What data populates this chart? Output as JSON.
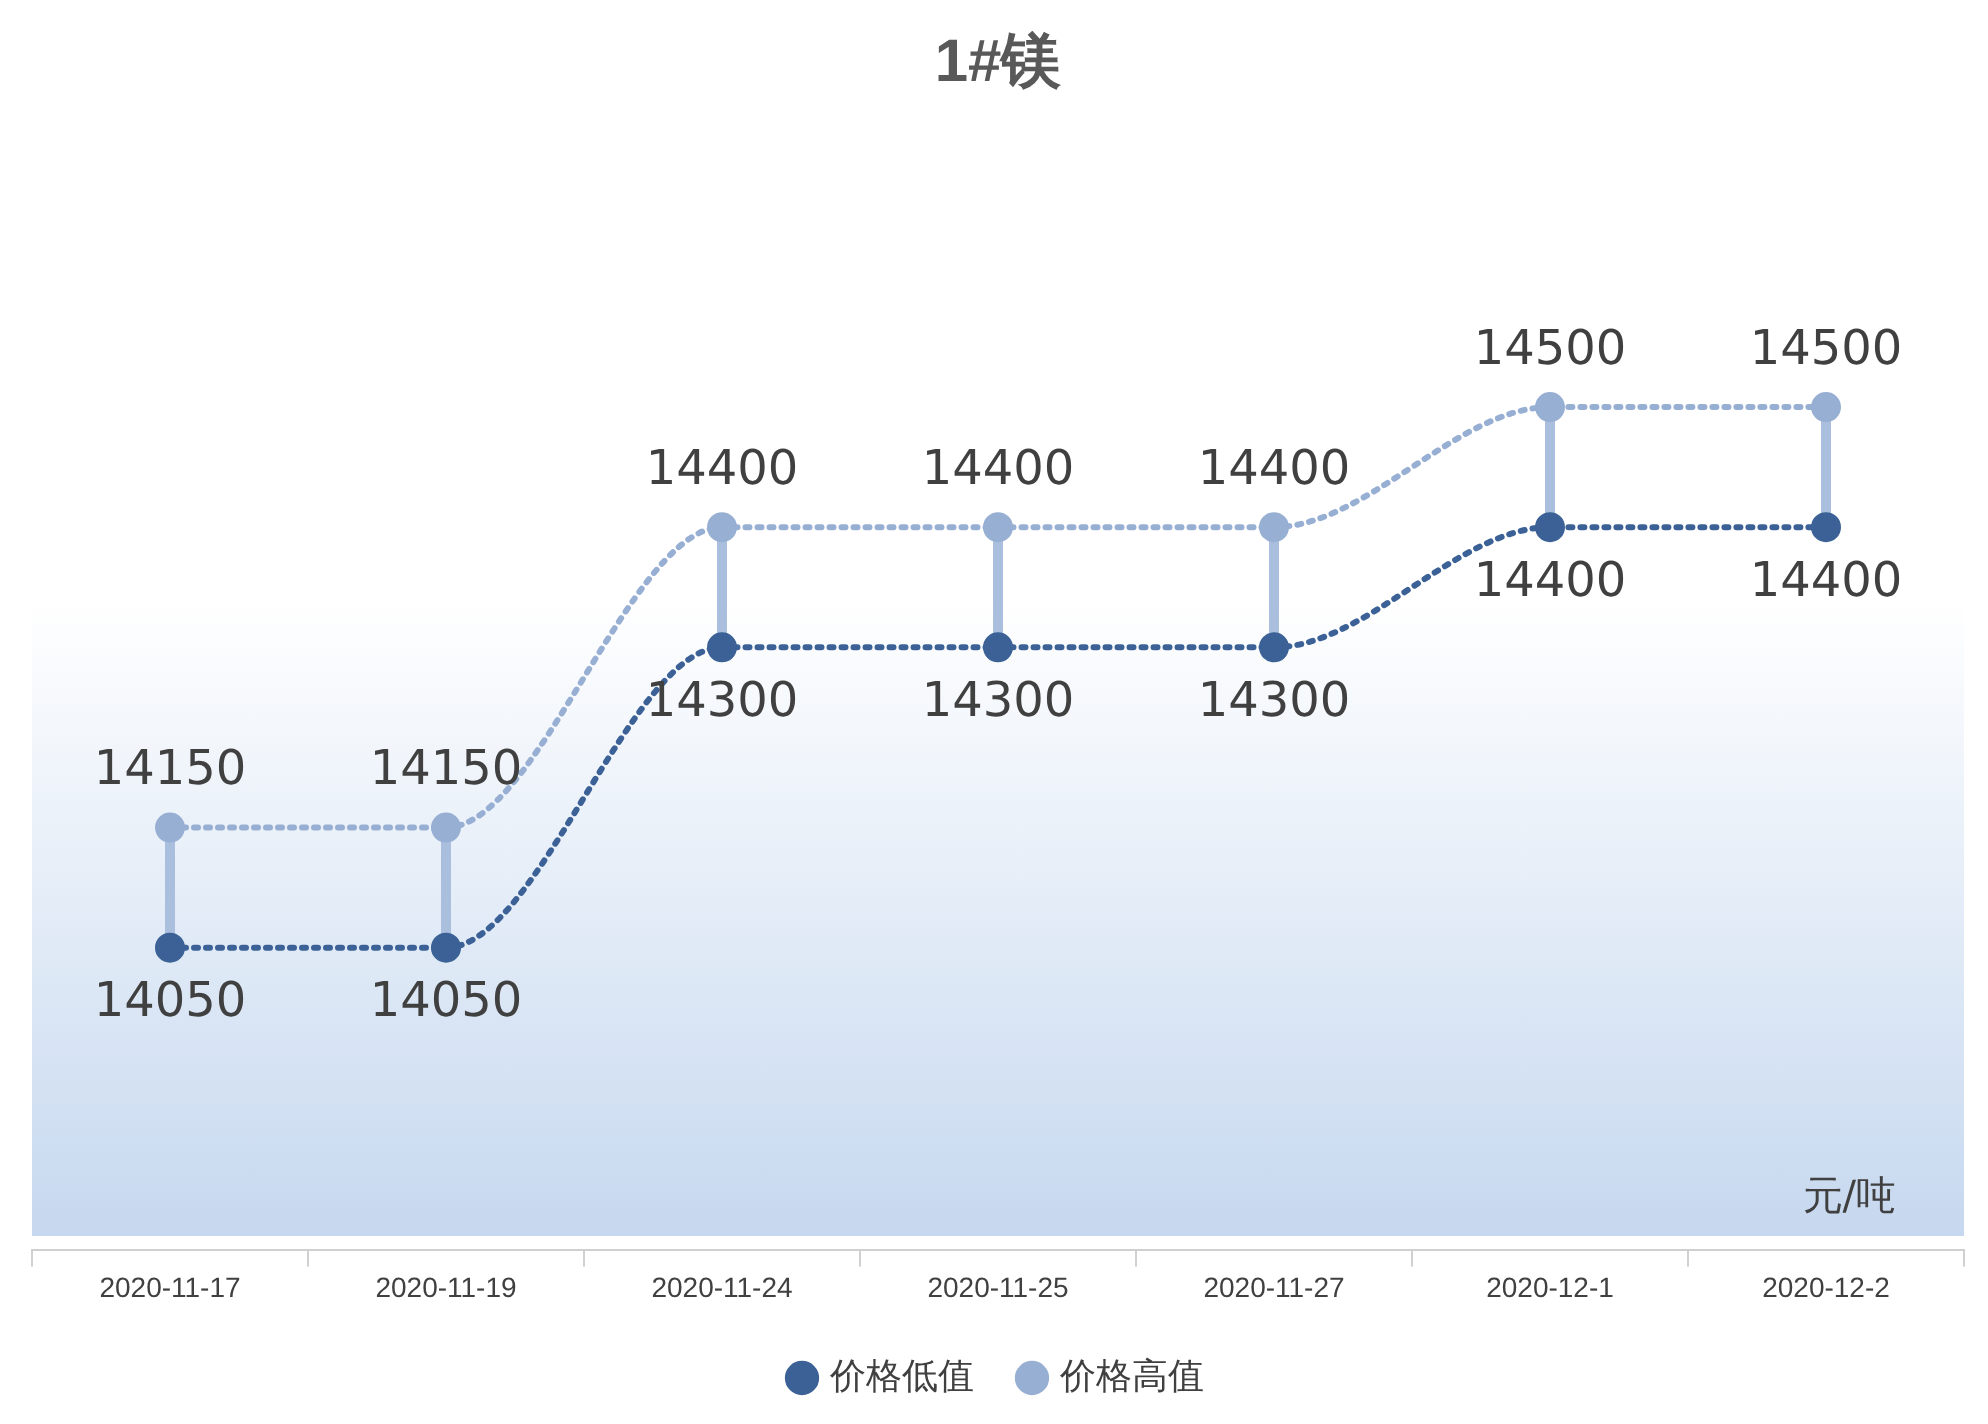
{
  "chart_data": {
    "type": "line",
    "title": "1#镁",
    "categories": [
      "2020-11-17",
      "2020-11-19",
      "2020-11-24",
      "2020-11-25",
      "2020-11-27",
      "2020-12-1",
      "2020-12-2"
    ],
    "series": [
      {
        "name": "价格低值",
        "color": "#3b6196",
        "values": [
          14050,
          14050,
          14300,
          14300,
          14300,
          14400,
          14400
        ]
      },
      {
        "name": "价格高值",
        "color": "#98afd4",
        "values": [
          14150,
          14150,
          14400,
          14400,
          14400,
          14500,
          14500
        ]
      }
    ],
    "data_labels": true,
    "legend": "bottom",
    "marker": "circle",
    "line_style": "dotted",
    "grid": false,
    "annotations": [
      "元/吨"
    ]
  }
}
